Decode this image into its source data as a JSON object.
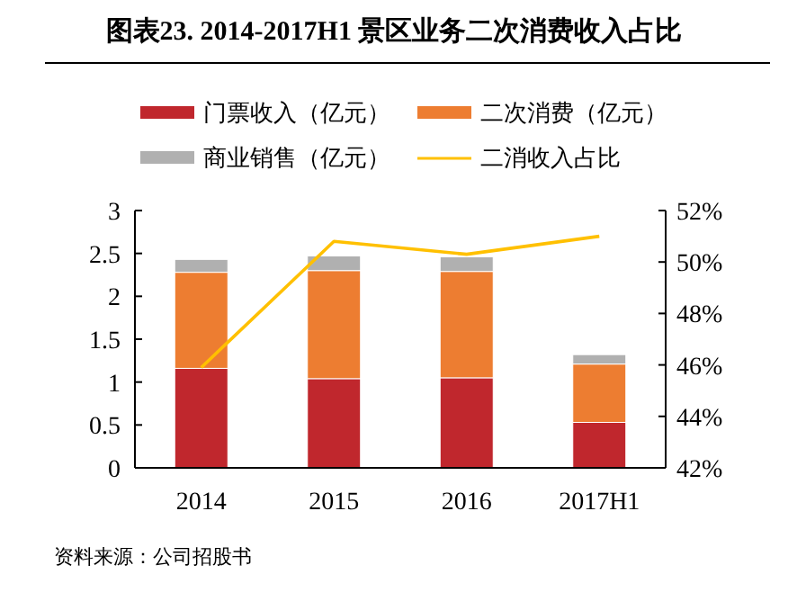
{
  "chart_data": {
    "type": "bar",
    "stacked": true,
    "title": "图表23. 2014-2017H1 景区业务二次消费收入占比",
    "categories": [
      "2014",
      "2015",
      "2016",
      "2017H1"
    ],
    "series": [
      {
        "name": "门票收入（亿元）",
        "color": "#c0272d",
        "values": [
          1.16,
          1.04,
          1.05,
          0.53
        ]
      },
      {
        "name": "二次消费（亿元）",
        "color": "#ed7d31",
        "values": [
          1.12,
          1.26,
          1.24,
          0.68
        ]
      },
      {
        "name": "商业销售（亿元）",
        "color": "#b0b0b0",
        "values": [
          0.15,
          0.17,
          0.17,
          0.11
        ]
      },
      {
        "name": "二消收入占比",
        "type": "line",
        "axis": "y2",
        "color": "#ffc000",
        "values": [
          45.9,
          50.8,
          50.3,
          51.0
        ]
      }
    ],
    "ylim": [
      0,
      3
    ],
    "yticks": [
      0,
      0.5,
      1,
      1.5,
      2,
      2.5,
      3
    ],
    "y2lim": [
      42,
      52
    ],
    "y2ticks": [
      {
        "value": 42,
        "label": "42%"
      },
      {
        "value": 44,
        "label": "44%"
      },
      {
        "value": 46,
        "label": "46%"
      },
      {
        "value": 48,
        "label": "48%"
      },
      {
        "value": 50,
        "label": "50%"
      },
      {
        "value": 52,
        "label": "52%"
      }
    ],
    "legend": "top",
    "grid": false,
    "annotations": [
      "资料来源：公司招股书"
    ]
  }
}
